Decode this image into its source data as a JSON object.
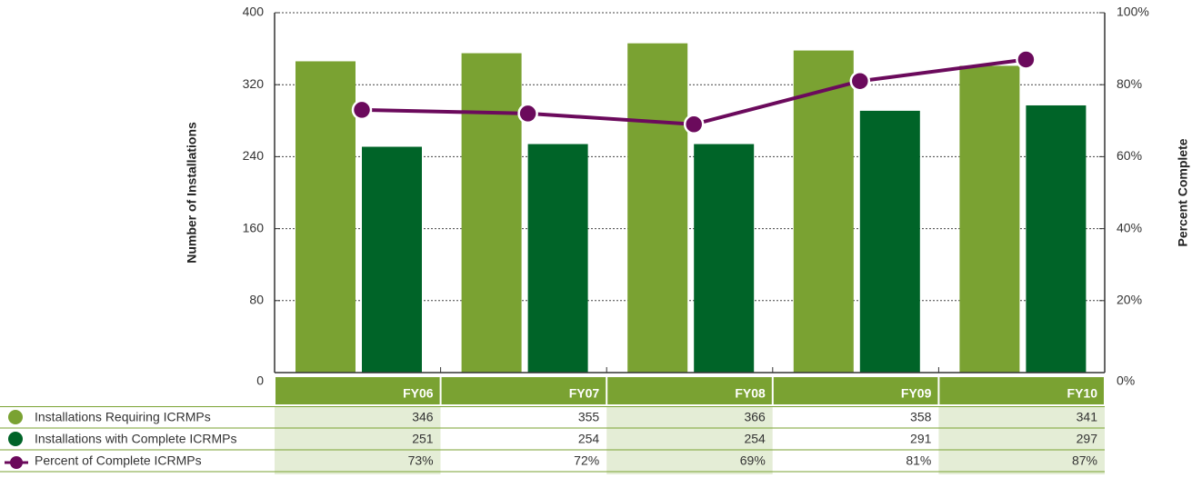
{
  "chart_data": {
    "type": "bar",
    "categories": [
      "FY06",
      "FY07",
      "FY08",
      "FY09",
      "FY10"
    ],
    "series": [
      {
        "name": "Installations Requiring ICRMPs",
        "color": "#7aa232",
        "values": [
          346,
          355,
          366,
          358,
          341
        ]
      },
      {
        "name": "Installations with Complete ICRMPs",
        "color": "#006428",
        "values": [
          251,
          254,
          254,
          291,
          297
        ]
      },
      {
        "name": "Percent of Complete ICRMPs",
        "color": "#6b0a5c",
        "type": "line",
        "axis": "y2",
        "values": [
          73,
          72,
          69,
          81,
          87
        ],
        "value_labels": [
          "73%",
          "72%",
          "69%",
          "81%",
          "87%"
        ]
      }
    ],
    "ylabel": "Number of Installations",
    "y2label": "Percent Complete",
    "ylim": [
      0,
      400
    ],
    "yticks": [
      0,
      80,
      160,
      240,
      320,
      400
    ],
    "y2lim": [
      0,
      100
    ],
    "y2ticks": [
      {
        "value": 0,
        "label": "0%"
      },
      {
        "value": 20,
        "label": "20%"
      },
      {
        "value": 40,
        "label": "40%"
      },
      {
        "value": 60,
        "label": "60%"
      },
      {
        "value": 80,
        "label": "80%"
      },
      {
        "value": 100,
        "label": "100%"
      }
    ],
    "grid": true
  }
}
